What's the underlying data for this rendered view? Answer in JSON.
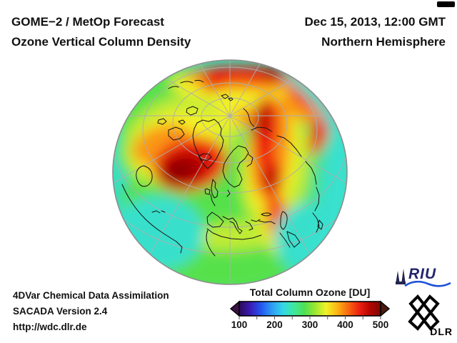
{
  "header": {
    "title_line1": "GOME−2 / MetOp Forecast",
    "title_line2": "Ozone Vertical Column Density",
    "datetime": "Dec 15, 2013, 12:00 GMT",
    "region": "Northern Hemisphere"
  },
  "footer": {
    "line1": "4DVar Chemical Data Assimilation",
    "line2": "SACADA Version 2.4",
    "line3": "http://wdc.dlr.de"
  },
  "colorbar": {
    "title": "Total Column Ozone [DU]",
    "ticks": [
      "100",
      "200",
      "300",
      "400",
      "500"
    ],
    "tick_values_du": [
      100,
      200,
      300,
      400,
      500
    ],
    "stops": [
      "#2c0b58",
      "#3b1bb3",
      "#2356f0",
      "#2f9bf5",
      "#33d6e8",
      "#3ee8a0",
      "#4fdf52",
      "#9ce832",
      "#f2f128",
      "#fcb515",
      "#f96b10",
      "#ee2312",
      "#b60500",
      "#7c0a00"
    ],
    "arrow_left_color": "#3a1045",
    "arrow_right_color": "#4a1a10"
  },
  "globe": {
    "description": "Orthographic view of the Northern Hemisphere centered near the North Pole showing forecast total ozone column; cyan ≈ 250 DU at low latitudes, green/yellow mid values, red/dark-red maxima ≈ 450–500 DU over the North Atlantic, Arctic rim and Siberia",
    "scale_min_du": 100,
    "scale_max_du": 500
  },
  "logos": {
    "riu_text": "RIU",
    "dlr_text": "DLR",
    "riu_wave_color": "#1b50d8",
    "riu_text_color": "#23246b"
  }
}
